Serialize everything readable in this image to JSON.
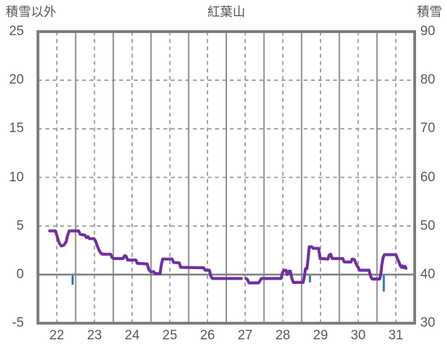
{
  "chart": {
    "title": "紅葉山",
    "left_axis_title": "積雪以外",
    "right_axis_title": "積雪"
  },
  "chart_data": {
    "type": "line",
    "title": "紅葉山",
    "left_axis_title": "積雪以外",
    "right_axis_title": "積雪",
    "x_axis": {
      "min": 22,
      "max": 32,
      "day_labels": [
        "22",
        "23",
        "24",
        "25",
        "26",
        "27",
        "28",
        "29",
        "30",
        "31"
      ]
    },
    "y_left": {
      "min": -5,
      "max": 25,
      "ticks": [
        "25",
        "20",
        "15",
        "10",
        "5",
        "0",
        "-5"
      ],
      "tick_values": [
        25,
        20,
        15,
        10,
        5,
        0,
        -5
      ]
    },
    "y_right": {
      "min": 30,
      "max": 90,
      "ticks": [
        "90",
        "80",
        "70",
        "60",
        "50",
        "40",
        "30"
      ],
      "tick_values": [
        90,
        80,
        70,
        60,
        50,
        40,
        30
      ]
    },
    "grid": {
      "h_dashed_values": [
        20,
        15,
        10,
        5
      ],
      "zero_line_value": 0,
      "v_solid_at_integer_days": true,
      "v_dashed_at_half_days": true
    },
    "colors": {
      "line": "#7030A0",
      "event_tick": "#2E75B6",
      "grid_solid": "#8c8c8c",
      "grid_dashed": "#979797",
      "border": "#7d7d7d",
      "zero_line": "#808080",
      "text": "#595959"
    },
    "series": [
      {
        "name": "積雪以外",
        "axis": "left",
        "color": "#7030A0",
        "segments": [
          [
            [
              22.31,
              4.5
            ],
            [
              22.46,
              4.5
            ],
            [
              22.5,
              4.05
            ],
            [
              22.54,
              3.5
            ],
            [
              22.58,
              3.15
            ],
            [
              22.62,
              2.95
            ],
            [
              22.68,
              3.0
            ],
            [
              22.72,
              3.2
            ],
            [
              22.75,
              3.4
            ],
            [
              22.79,
              4.05
            ],
            [
              22.83,
              4.5
            ],
            [
              23.08,
              4.5
            ],
            [
              23.12,
              4.15
            ],
            [
              23.25,
              4.05
            ],
            [
              23.29,
              3.8
            ],
            [
              23.33,
              3.9
            ],
            [
              23.37,
              3.7
            ],
            [
              23.49,
              3.7
            ],
            [
              23.53,
              3.45
            ],
            [
              23.58,
              2.9
            ],
            [
              23.62,
              2.55
            ],
            [
              23.66,
              2.25
            ],
            [
              23.71,
              2.1
            ],
            [
              23.93,
              2.1
            ],
            [
              23.97,
              1.75
            ],
            [
              24.01,
              1.65
            ],
            [
              24.26,
              1.65
            ],
            [
              24.3,
              1.95
            ],
            [
              24.34,
              1.9
            ],
            [
              24.38,
              1.5
            ],
            [
              24.6,
              1.5
            ],
            [
              24.64,
              1.15
            ],
            [
              24.9,
              1.1
            ],
            [
              24.94,
              0.55
            ],
            [
              24.99,
              0.3
            ],
            [
              25.07,
              0.3
            ],
            [
              25.11,
              0.1
            ],
            [
              25.24,
              0.1
            ],
            [
              25.27,
              0.9
            ],
            [
              25.31,
              1.6
            ],
            [
              25.56,
              1.6
            ],
            [
              25.6,
              1.25
            ],
            [
              25.75,
              1.2
            ],
            [
              25.79,
              0.75
            ],
            [
              26.4,
              0.7
            ],
            [
              26.44,
              0.45
            ],
            [
              26.55,
              0.45
            ],
            [
              26.59,
              -0.15
            ],
            [
              26.63,
              -0.4
            ],
            [
              27.4,
              -0.4
            ]
          ],
          [
            [
              27.52,
              -0.4
            ],
            [
              27.56,
              -0.5
            ],
            [
              27.6,
              -0.85
            ],
            [
              27.86,
              -0.85
            ],
            [
              27.93,
              -0.4
            ],
            [
              28.45,
              -0.4
            ],
            [
              28.49,
              0.2
            ],
            [
              28.53,
              0.45
            ],
            [
              28.58,
              0.45
            ],
            [
              28.62,
              0.0
            ],
            [
              28.66,
              0.35
            ],
            [
              28.7,
              0.35
            ],
            [
              28.74,
              -0.4
            ],
            [
              28.78,
              -0.8
            ],
            [
              29.04,
              -0.8
            ],
            [
              29.07,
              -0.2
            ],
            [
              29.1,
              0.6
            ],
            [
              29.14,
              0.6
            ],
            [
              29.17,
              1.6
            ],
            [
              29.2,
              2.85
            ],
            [
              29.27,
              2.85
            ],
            [
              29.31,
              2.7
            ],
            [
              29.45,
              2.7
            ],
            [
              29.49,
              1.65
            ],
            [
              29.7,
              1.6
            ],
            [
              29.73,
              2.0
            ],
            [
              29.77,
              2.1
            ],
            [
              29.81,
              1.65
            ],
            [
              30.09,
              1.65
            ],
            [
              30.13,
              1.3
            ],
            [
              30.31,
              1.3
            ],
            [
              30.34,
              1.6
            ],
            [
              30.4,
              1.55
            ],
            [
              30.44,
              1.15
            ],
            [
              30.49,
              0.8
            ],
            [
              30.54,
              0.45
            ],
            [
              30.79,
              0.45
            ],
            [
              30.83,
              -0.15
            ],
            [
              30.87,
              -0.45
            ],
            [
              31.07,
              -0.45
            ],
            [
              31.1,
              0.05
            ],
            [
              31.13,
              1.05
            ],
            [
              31.16,
              1.75
            ],
            [
              31.2,
              2.05
            ],
            [
              31.5,
              2.05
            ],
            [
              31.54,
              1.65
            ],
            [
              31.57,
              1.4
            ],
            [
              31.62,
              0.9
            ],
            [
              31.65,
              0.75
            ],
            [
              31.68,
              0.9
            ],
            [
              31.71,
              0.7
            ],
            [
              31.74,
              0.85
            ],
            [
              31.77,
              0.65
            ]
          ]
        ]
      }
    ],
    "event_ticks": {
      "name": "below-zero-ticks",
      "color": "#2E75B6",
      "points": [
        {
          "day": 22.92,
          "value": -1.05
        },
        {
          "day": 29.22,
          "value": -0.8
        },
        {
          "day": 31.18,
          "value": -1.75
        }
      ]
    }
  }
}
